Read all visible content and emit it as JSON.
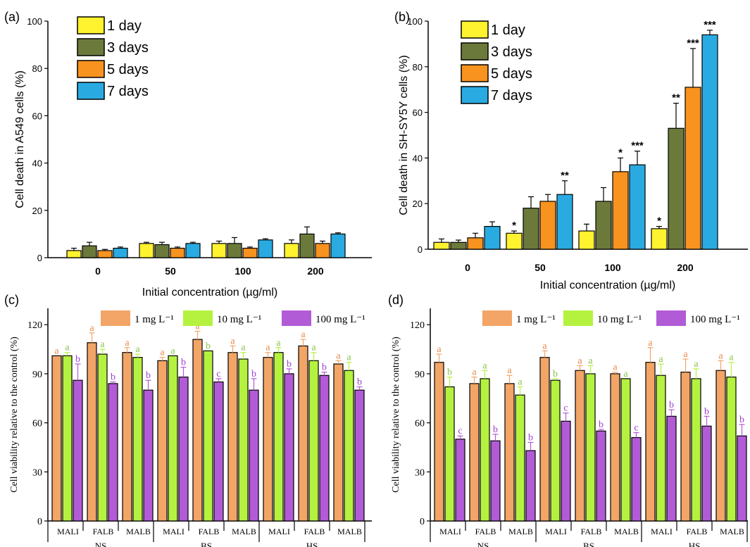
{
  "colors": {
    "day1": "#FFF22E",
    "day3": "#6B7A3A",
    "day5": "#F7931E",
    "day7": "#29ABE2",
    "mg1": "#F2A566",
    "mg10": "#B5F240",
    "mg100": "#B25BD6",
    "axis": "#000000"
  },
  "chart_data": [
    {
      "panel": "(a)",
      "type": "bar",
      "ylabel": "Cell death in A549 cells (%)",
      "xlabel": "Initial concentration (µg/ml)",
      "ylim": [
        0,
        100
      ],
      "yticks": [
        "0",
        "20",
        "40",
        "60",
        "80",
        "100"
      ],
      "categories": [
        "0",
        "50",
        "100",
        "200"
      ],
      "legend_position": "top-left",
      "series": [
        {
          "name": "1 day",
          "values": [
            3,
            6,
            6,
            6
          ],
          "errors": [
            1,
            0.5,
            1,
            1.5
          ],
          "labels": [
            "",
            "",
            "",
            ""
          ]
        },
        {
          "name": "3 days",
          "values": [
            5,
            5.5,
            6,
            10
          ],
          "errors": [
            1.5,
            1,
            2.5,
            3
          ],
          "labels": [
            "",
            "",
            "",
            ""
          ]
        },
        {
          "name": "5 days",
          "values": [
            3,
            4,
            4,
            6
          ],
          "errors": [
            0.5,
            0.5,
            0.5,
            1
          ],
          "labels": [
            "",
            "",
            "",
            ""
          ]
        },
        {
          "name": "7 days",
          "values": [
            4,
            6,
            7.5,
            10
          ],
          "errors": [
            0.5,
            0.5,
            0.5,
            0.5
          ],
          "labels": [
            "",
            "",
            "",
            ""
          ]
        }
      ]
    },
    {
      "panel": "(b)",
      "type": "bar",
      "ylabel": "Cell death in SH-SY5Y cells (%)",
      "xlabel": "Initial concentration (µg/ml)",
      "ylim": [
        0,
        100
      ],
      "yticks": [
        "0",
        "20",
        "40",
        "60",
        "80",
        "100"
      ],
      "categories": [
        "0",
        "50",
        "100",
        "200"
      ],
      "legend_position": "top-left",
      "series": [
        {
          "name": "1 day",
          "values": [
            3,
            7,
            8,
            9
          ],
          "errors": [
            1.5,
            1,
            3,
            1
          ],
          "labels": [
            "",
            "*",
            "",
            "*"
          ]
        },
        {
          "name": "3 days",
          "values": [
            3,
            18,
            21,
            53
          ],
          "errors": [
            1,
            5,
            6,
            11
          ],
          "labels": [
            "",
            "",
            "",
            "**"
          ]
        },
        {
          "name": "5 days",
          "values": [
            5,
            21,
            34,
            71
          ],
          "errors": [
            2,
            3,
            6,
            17
          ],
          "labels": [
            "",
            "",
            "*",
            "***"
          ]
        },
        {
          "name": "7 days",
          "values": [
            10,
            24,
            37,
            94
          ],
          "errors": [
            2,
            6,
            6,
            2
          ],
          "labels": [
            "",
            "**",
            "***",
            "***"
          ]
        }
      ]
    },
    {
      "panel": "(c)",
      "type": "bar",
      "ylabel": "Cell viability relative to the control (%)",
      "ylim": [
        0,
        130
      ],
      "yticks": [
        "0",
        "30",
        "60",
        "90",
        "120"
      ],
      "categories": [
        "MALI",
        "FALB",
        "MALB",
        "MALI",
        "FALB",
        "MALB",
        "MALI",
        "FALB",
        "MALB"
      ],
      "groups": [
        "NS",
        "BS",
        "HS"
      ],
      "legend_position": "top-right",
      "series": [
        {
          "name": "1 mg L⁻¹",
          "values": [
            101,
            109,
            103,
            98,
            111,
            103,
            100,
            107,
            96
          ],
          "errors": [
            0,
            6,
            3,
            2,
            5,
            4,
            3,
            4,
            2
          ],
          "labels": [
            "a",
            "a",
            "a",
            "a",
            "a",
            "a",
            "a",
            "a",
            "a"
          ]
        },
        {
          "name": "10 mg L⁻¹",
          "values": [
            101,
            102,
            100,
            101,
            104,
            99,
            103,
            98,
            92
          ],
          "errors": [
            2,
            3,
            2,
            0,
            0,
            4,
            3,
            5,
            5
          ],
          "labels": [
            "a",
            "a",
            "a",
            "a",
            "b",
            "a",
            "a",
            "a",
            "a"
          ]
        },
        {
          "name": "100 mg L⁻¹",
          "values": [
            86,
            84,
            80,
            88,
            85,
            80,
            90,
            89,
            80
          ],
          "errors": [
            10,
            1,
            6,
            6,
            2,
            7,
            3,
            2,
            2
          ],
          "labels": [
            "b",
            "b",
            "b",
            "b",
            "c",
            "b",
            "b",
            "b",
            "b"
          ]
        }
      ]
    },
    {
      "panel": "(d)",
      "type": "bar",
      "ylabel": "Cell viability relative to the control (%)",
      "ylim": [
        0,
        130
      ],
      "yticks": [
        "0",
        "30",
        "60",
        "90",
        "120"
      ],
      "categories": [
        "MALI",
        "FALB",
        "MALB",
        "MALI",
        "FALB",
        "MALB",
        "MALI",
        "FALB",
        "MALB"
      ],
      "groups": [
        "NS",
        "BS",
        "HS"
      ],
      "legend_position": "top-right",
      "series": [
        {
          "name": "1 mg L⁻¹",
          "values": [
            97,
            84,
            84,
            100,
            92,
            90,
            97,
            91,
            92
          ],
          "errors": [
            5,
            4,
            5,
            4,
            3,
            1,
            9,
            8,
            6
          ],
          "labels": [
            "a",
            "a",
            "a",
            "a",
            "a",
            "a",
            "a",
            "a",
            "a"
          ]
        },
        {
          "name": "10 mg L⁻¹",
          "values": [
            82,
            87,
            77,
            86,
            90,
            87,
            89,
            87,
            88
          ],
          "errors": [
            6,
            5,
            5,
            1,
            5,
            0,
            7,
            6,
            9
          ],
          "labels": [
            "b",
            "a",
            "a",
            "b",
            "a",
            "a",
            "a",
            "a",
            "a"
          ]
        },
        {
          "name": "100 mg L⁻¹",
          "values": [
            50,
            49,
            43,
            61,
            55,
            51,
            64,
            58,
            52
          ],
          "errors": [
            2,
            4,
            5,
            5,
            1,
            3,
            4,
            6,
            7
          ],
          "labels": [
            "c",
            "b",
            "b",
            "c",
            "b",
            "c",
            "b",
            "b",
            "b"
          ]
        }
      ]
    }
  ]
}
